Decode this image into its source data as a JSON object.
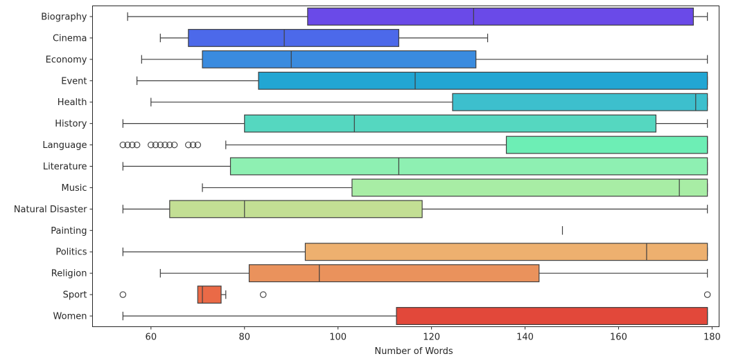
{
  "chart_data": {
    "type": "box",
    "xlabel": "Number of Words",
    "ylabel": "",
    "xlim": [
      47.5,
      181.5
    ],
    "xticks": [
      60,
      80,
      100,
      120,
      140,
      160,
      180
    ],
    "grid": false,
    "legend": "none",
    "categories": [
      "Biography",
      "Cinema",
      "Economy",
      "Event",
      "Health",
      "History",
      "Language",
      "Literature",
      "Music",
      "Natural Disaster",
      "Painting",
      "Politics",
      "Religion",
      "Sport",
      "Women"
    ],
    "series": [
      {
        "category": "Biography",
        "whisker_low": 55,
        "q1": 93.5,
        "median": 129,
        "q3": 176,
        "whisker_high": 179,
        "fliers": [],
        "color": "#6a4ae8"
      },
      {
        "category": "Cinema",
        "whisker_low": 62,
        "q1": 68,
        "median": 88.5,
        "q3": 113,
        "whisker_high": 132,
        "fliers": [],
        "color": "#4c69ea"
      },
      {
        "category": "Economy",
        "whisker_low": 58,
        "q1": 71,
        "median": 90,
        "q3": 129.5,
        "whisker_high": 179,
        "fliers": [],
        "color": "#3a8bdf"
      },
      {
        "category": "Event",
        "whisker_low": 57,
        "q1": 83,
        "median": 116.5,
        "q3": 179,
        "whisker_high": 179,
        "fliers": [],
        "color": "#22a6d3"
      },
      {
        "category": "Health",
        "whisker_low": 60,
        "q1": 124.5,
        "median": 176.5,
        "q3": 179,
        "whisker_high": 179,
        "fliers": [],
        "color": "#3dbfcd"
      },
      {
        "category": "History",
        "whisker_low": 54,
        "q1": 80,
        "median": 103.5,
        "q3": 168,
        "whisker_high": 179,
        "fliers": [],
        "color": "#55d7c0"
      },
      {
        "category": "Language",
        "whisker_low": 76,
        "q1": 136,
        "median": 179,
        "q3": 179,
        "whisker_high": 179,
        "fliers": [
          54,
          55,
          56,
          57,
          60,
          61,
          62,
          63,
          64,
          65,
          68,
          69,
          70
        ],
        "color": "#6deeb5"
      },
      {
        "category": "Literature",
        "whisker_low": 54,
        "q1": 77,
        "median": 113,
        "q3": 179,
        "whisker_high": 179,
        "fliers": [],
        "color": "#8ef0b2"
      },
      {
        "category": "Music",
        "whisker_low": 71,
        "q1": 103,
        "median": 173,
        "q3": 179,
        "whisker_high": 179,
        "fliers": [],
        "color": "#a8eda5"
      },
      {
        "category": "Natural Disaster",
        "whisker_low": 54,
        "q1": 64,
        "median": 80,
        "q3": 118,
        "whisker_high": 179,
        "fliers": [],
        "color": "#c3df94"
      },
      {
        "category": "Painting",
        "whisker_low": 148,
        "q1": 148,
        "median": 148,
        "q3": 148,
        "whisker_high": 148,
        "fliers": [],
        "color": "#dcc585"
      },
      {
        "category": "Politics",
        "whisker_low": 54,
        "q1": 93,
        "median": 166,
        "q3": 179,
        "whisker_high": 179,
        "fliers": [],
        "color": "#edb06f"
      },
      {
        "category": "Religion",
        "whisker_low": 62,
        "q1": 81,
        "median": 96,
        "q3": 143,
        "whisker_high": 179,
        "fliers": [],
        "color": "#ea925c"
      },
      {
        "category": "Sport",
        "whisker_low": 70,
        "q1": 70,
        "median": 71,
        "q3": 75,
        "whisker_high": 76,
        "fliers": [
          54,
          84,
          179
        ],
        "color": "#ea6a47"
      },
      {
        "category": "Women",
        "whisker_low": 54,
        "q1": 112.5,
        "median": 179,
        "q3": 179,
        "whisker_high": 179,
        "fliers": [],
        "color": "#e2483a"
      }
    ]
  }
}
